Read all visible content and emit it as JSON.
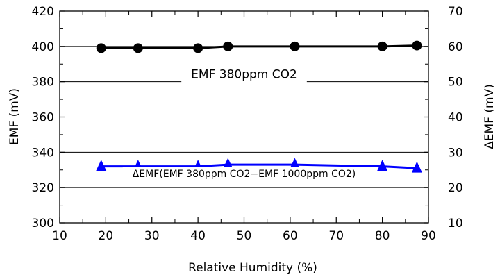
{
  "chart_data": {
    "type": "line",
    "xlabel": "Relative Humidity (%)",
    "ylabel": "EMF (mV)",
    "y2label": "ΔEMF (mV)",
    "xlim": [
      10,
      90
    ],
    "ylim": [
      300,
      420
    ],
    "y2lim": [
      10,
      70
    ],
    "xticks": [
      "10",
      "20",
      "30",
      "40",
      "50",
      "60",
      "70",
      "80",
      "90"
    ],
    "yticks": [
      "300",
      "320",
      "340",
      "360",
      "380",
      "400",
      "420"
    ],
    "y2ticks": [
      "10",
      "20",
      "30",
      "40",
      "50",
      "60",
      "70"
    ],
    "grid": "horizontal",
    "series": [
      {
        "axis": "left",
        "color": "#000000",
        "marker": "circle",
        "x": [
          19,
          27,
          40,
          46.5,
          61,
          80,
          87.5
        ],
        "y": [
          399,
          399,
          399,
          400,
          400,
          400,
          400.5
        ]
      },
      {
        "axis": "right",
        "color": "#0000ff",
        "marker": "triangle",
        "x": [
          19,
          27,
          40,
          46.5,
          61,
          80,
          87.5
        ],
        "y": [
          26,
          26,
          26,
          26.5,
          26.5,
          26,
          25.5
        ]
      }
    ],
    "annotations": [
      {
        "text": "EMF 380ppm CO2",
        "x": 50,
        "y": 382
      },
      {
        "text": "ΔEMF(EMF 380ppm CO2−EMF 1000ppm CO2)",
        "x": 50,
        "y": 326
      }
    ]
  }
}
